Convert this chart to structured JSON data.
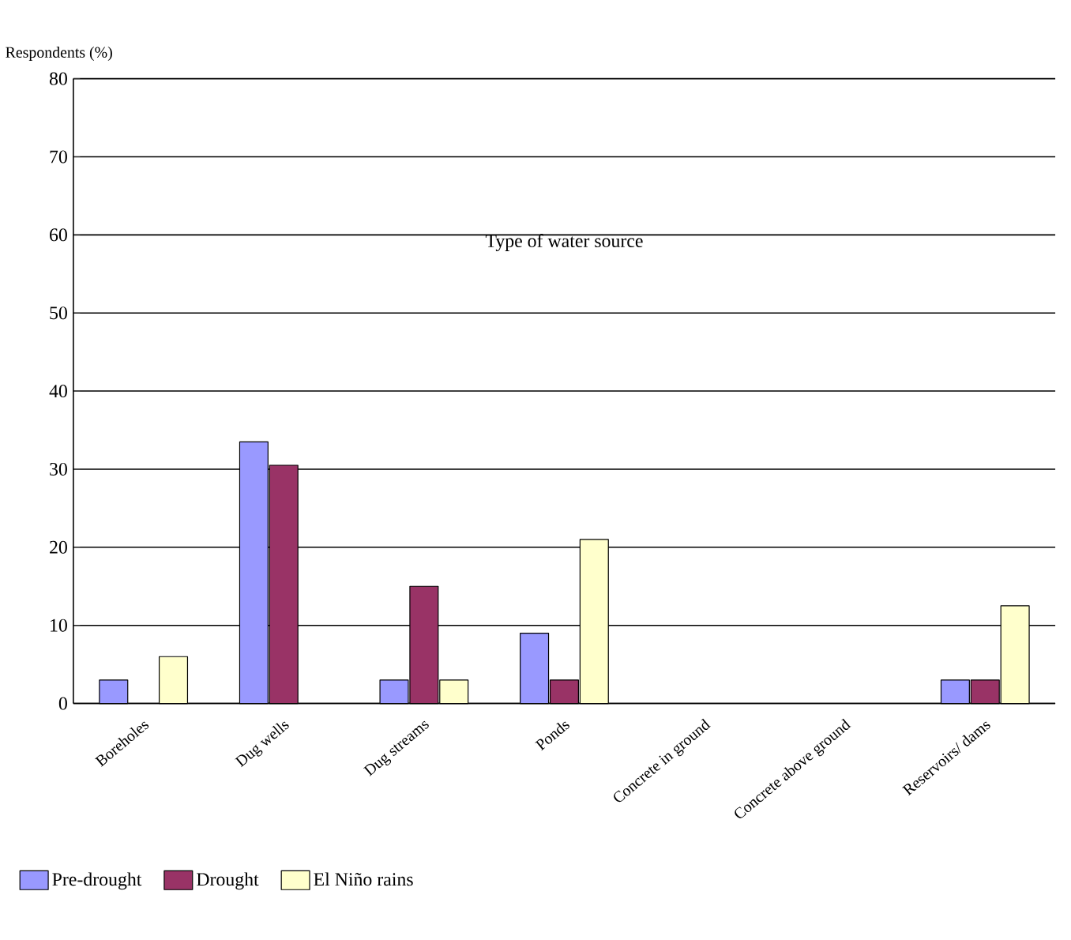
{
  "chart_data": {
    "type": "bar",
    "title": "Type of water source",
    "ylabel": "Respondents (%)",
    "categories": [
      "Boreholes",
      "Dug wells",
      "Dug streams",
      "Ponds",
      "Concrete in ground",
      "Concrete above ground",
      "Reservoirs/ dams"
    ],
    "series": [
      {
        "name": "Pre-drought",
        "color": "#9999ff",
        "values": [
          3,
          33.5,
          3,
          9,
          null,
          null,
          3
        ]
      },
      {
        "name": "Drought",
        "color": "#993366",
        "values": [
          null,
          30.5,
          15,
          3,
          null,
          null,
          3
        ]
      },
      {
        "name": "El Niño rains",
        "color": "#ffffcc",
        "values": [
          6,
          null,
          3,
          21,
          null,
          null,
          12.5
        ]
      }
    ],
    "ylim": [
      0,
      80
    ],
    "yticks": [
      0,
      10,
      20,
      30,
      40,
      50,
      60,
      70,
      80
    ],
    "grid": "y",
    "legend": "bottom left"
  }
}
